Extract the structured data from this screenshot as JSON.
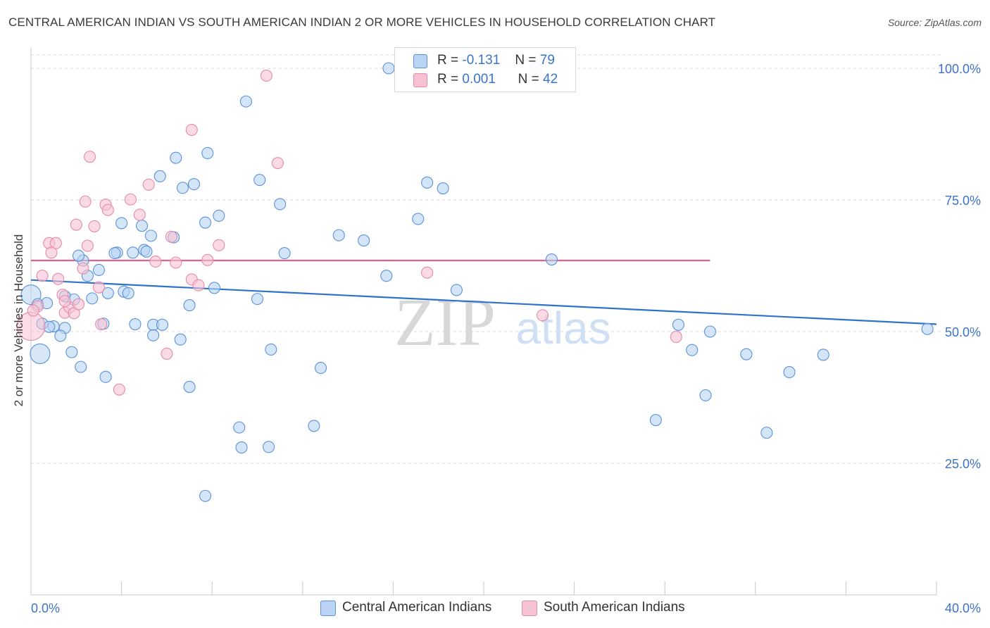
{
  "header": {
    "title": "CENTRAL AMERICAN INDIAN VS SOUTH AMERICAN INDIAN 2 OR MORE VEHICLES IN HOUSEHOLD CORRELATION CHART",
    "source": "Source: ZipAtlas.com"
  },
  "legend": {
    "r_label": "R =",
    "n_label": "N =",
    "central": {
      "r": "-0.131",
      "n": "79"
    },
    "south": {
      "r": "0.001",
      "n": "42"
    }
  },
  "watermark": {
    "zip": "ZIP",
    "atlas": "atlas"
  },
  "colors": {
    "blue_fill": "#b8d3f3",
    "blue_stroke": "#5b92d8",
    "blue_line": "#2f72cc",
    "pink_fill": "#f7c3d4",
    "pink_stroke": "#e68aa8",
    "pink_line": "#e2608c",
    "tick_label": "#3d72c9",
    "grid": "#d9d9d9"
  },
  "chart_data": {
    "type": "scatter",
    "title": "CENTRAL AMERICAN INDIAN VS SOUTH AMERICAN INDIAN 2 OR MORE VEHICLES IN HOUSEHOLD CORRELATION CHART",
    "xlabel": "",
    "ylabel": "2 or more Vehicles in Household",
    "xlim": [
      0,
      40
    ],
    "ylim": [
      0,
      103
    ],
    "x_ticks": [
      "0.0%",
      "40.0%"
    ],
    "y_ticks": [
      {
        "value": 100,
        "label": "100.0%"
      },
      {
        "value": 75,
        "label": "75.0%"
      },
      {
        "value": 50,
        "label": "50.0%"
      },
      {
        "value": 25,
        "label": "25.0%"
      }
    ],
    "grid": "dashed horizontal",
    "legend_position": "top-center",
    "series": [
      {
        "name": "Central American Indians",
        "trend": {
          "x": [
            0,
            40
          ],
          "y": [
            59.8,
            51.4
          ]
        },
        "points": [
          [
            0.0,
            57.0
          ],
          [
            0.3,
            55.2
          ],
          [
            0.7,
            55.4
          ],
          [
            0.5,
            51.5
          ],
          [
            1.0,
            51.0
          ],
          [
            0.8,
            50.9
          ],
          [
            1.5,
            50.7
          ],
          [
            1.3,
            49.2
          ],
          [
            0.4,
            45.8
          ],
          [
            1.8,
            46.1
          ],
          [
            2.2,
            43.3
          ],
          [
            1.5,
            56.7
          ],
          [
            1.9,
            56.1
          ],
          [
            2.7,
            56.3
          ],
          [
            2.5,
            60.6
          ],
          [
            2.3,
            63.5
          ],
          [
            3.0,
            61.7
          ],
          [
            2.1,
            64.4
          ],
          [
            3.8,
            65.0
          ],
          [
            3.7,
            64.9
          ],
          [
            4.5,
            65.0
          ],
          [
            5.0,
            65.5
          ],
          [
            5.1,
            65.2
          ],
          [
            3.4,
            57.3
          ],
          [
            4.1,
            57.6
          ],
          [
            4.3,
            57.3
          ],
          [
            3.2,
            51.5
          ],
          [
            4.6,
            51.4
          ],
          [
            5.4,
            51.3
          ],
          [
            5.8,
            51.3
          ],
          [
            5.4,
            49.3
          ],
          [
            6.6,
            48.5
          ],
          [
            3.3,
            41.4
          ],
          [
            5.3,
            68.2
          ],
          [
            4.0,
            70.6
          ],
          [
            4.9,
            70.1
          ],
          [
            6.3,
            67.9
          ],
          [
            7.7,
            70.7
          ],
          [
            8.3,
            72.0
          ],
          [
            5.7,
            79.5
          ],
          [
            6.7,
            77.3
          ],
          [
            7.2,
            78.0
          ],
          [
            6.4,
            83.0
          ],
          [
            7.8,
            83.9
          ],
          [
            7.0,
            55.0
          ],
          [
            8.1,
            58.3
          ],
          [
            9.2,
            31.8
          ],
          [
            9.3,
            28.0
          ],
          [
            10.5,
            28.1
          ],
          [
            7.0,
            39.5
          ],
          [
            7.7,
            18.8
          ],
          [
            10.0,
            56.2
          ],
          [
            11.2,
            64.9
          ],
          [
            10.6,
            46.6
          ],
          [
            9.5,
            93.7
          ],
          [
            10.1,
            78.8
          ],
          [
            11.0,
            74.2
          ],
          [
            12.5,
            32.1
          ],
          [
            12.8,
            43.1
          ],
          [
            13.6,
            68.3
          ],
          [
            14.7,
            67.3
          ],
          [
            15.7,
            60.6
          ],
          [
            15.8,
            100.0
          ],
          [
            17.1,
            71.4
          ],
          [
            17.5,
            78.3
          ],
          [
            18.2,
            77.2
          ],
          [
            18.8,
            57.9
          ],
          [
            22.3,
            100.0
          ],
          [
            23.0,
            63.7
          ],
          [
            27.6,
            33.2
          ],
          [
            28.6,
            51.3
          ],
          [
            29.2,
            46.5
          ],
          [
            29.8,
            37.9
          ],
          [
            30.0,
            50.0
          ],
          [
            31.6,
            45.7
          ],
          [
            32.5,
            30.8
          ],
          [
            33.5,
            42.3
          ],
          [
            35.0,
            45.6
          ],
          [
            39.6,
            50.5
          ]
        ],
        "large_points": [
          [
            0.0,
            57.0
          ],
          [
            0.4,
            45.8
          ]
        ]
      },
      {
        "name": "South American Indians",
        "trend": {
          "x": [
            0,
            30
          ],
          "y": [
            63.5,
            63.5
          ]
        },
        "points": [
          [
            0.0,
            51.0
          ],
          [
            0.3,
            54.8
          ],
          [
            0.5,
            60.6
          ],
          [
            0.8,
            66.8
          ],
          [
            1.1,
            66.8
          ],
          [
            0.9,
            65.0
          ],
          [
            1.2,
            60.0
          ],
          [
            1.4,
            57.0
          ],
          [
            1.5,
            53.6
          ],
          [
            1.7,
            54.6
          ],
          [
            1.9,
            53.5
          ],
          [
            2.1,
            55.2
          ],
          [
            1.5,
            55.8
          ],
          [
            2.3,
            62.0
          ],
          [
            2.0,
            70.3
          ],
          [
            2.5,
            66.3
          ],
          [
            2.8,
            70.0
          ],
          [
            2.4,
            74.7
          ],
          [
            3.3,
            74.1
          ],
          [
            3.4,
            73.1
          ],
          [
            2.6,
            83.2
          ],
          [
            3.0,
            58.4
          ],
          [
            3.1,
            51.4
          ],
          [
            3.9,
            39.0
          ],
          [
            4.4,
            75.1
          ],
          [
            4.8,
            72.2
          ],
          [
            5.2,
            77.9
          ],
          [
            5.5,
            63.3
          ],
          [
            6.2,
            68.0
          ],
          [
            6.4,
            63.1
          ],
          [
            7.1,
            88.3
          ],
          [
            7.1,
            59.9
          ],
          [
            7.4,
            58.8
          ],
          [
            7.8,
            63.6
          ],
          [
            8.3,
            66.4
          ],
          [
            6.0,
            45.8
          ],
          [
            10.4,
            98.6
          ],
          [
            10.9,
            82.0
          ],
          [
            17.5,
            61.2
          ],
          [
            22.6,
            53.1
          ],
          [
            28.5,
            49.0
          ],
          [
            0.1,
            54.0
          ]
        ],
        "large_points": [
          [
            0.0,
            51.0
          ]
        ]
      }
    ]
  },
  "bottom_legend": {
    "central_label": "Central American Indians",
    "south_label": "South American Indians"
  }
}
